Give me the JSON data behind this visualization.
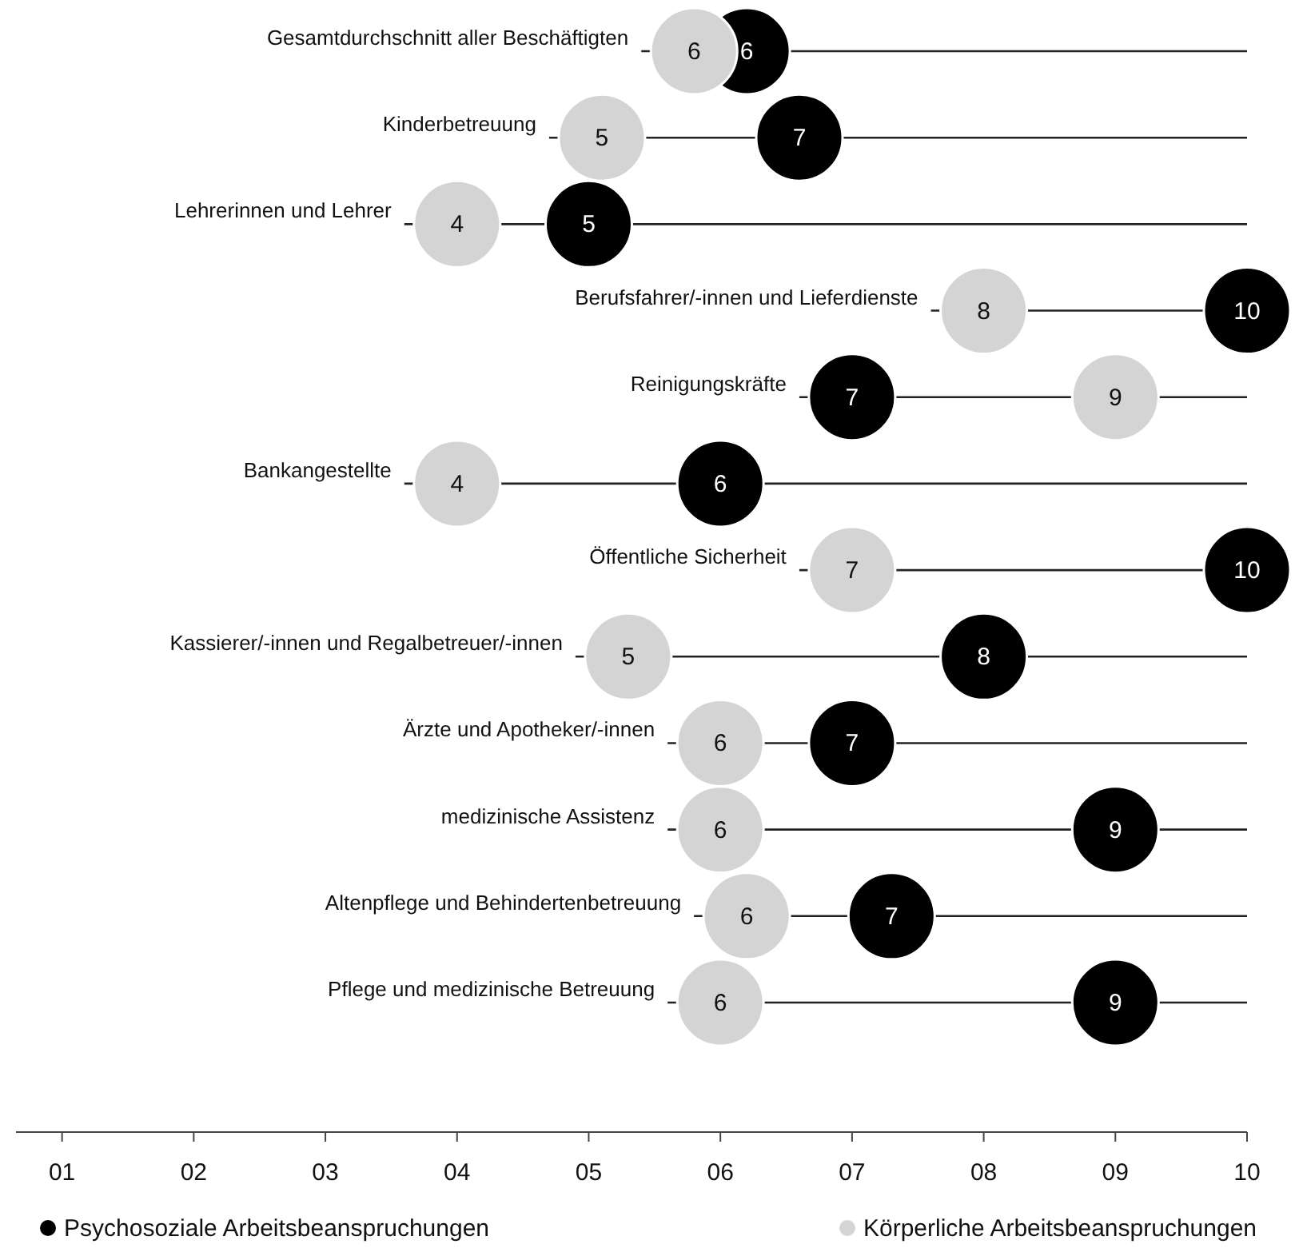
{
  "chart_data": {
    "type": "scatter",
    "orientation": "horizontal",
    "marker": "circle",
    "legend": "bottom",
    "categories": [
      "Gesamtdurchschnitt  aller Beschäftigten",
      "Kinderbetreuung",
      "Lehrerinnen und Lehrer",
      "Berufsfahrer/-innen und Lieferdienste",
      "Reinigungskräfte",
      "Bankangestellte",
      "Öffentliche Sicherheit",
      "Kassierer/-innen und Regalbetreuer/-innen",
      "Ärzte und Apotheker/-innen",
      "medizinische Assistenz",
      "Altenpflege  und Behindertenbetreuung",
      "Pflege und medizinische Betreuung"
    ],
    "xlim": [
      0.65,
      10
    ],
    "xticks": [
      {
        "value": 1,
        "label": "01"
      },
      {
        "value": 2,
        "label": "02"
      },
      {
        "value": 3,
        "label": "03"
      },
      {
        "value": 4,
        "label": "04"
      },
      {
        "value": 5,
        "label": "05"
      },
      {
        "value": 6,
        "label": "06"
      },
      {
        "value": 7,
        "label": "07"
      },
      {
        "value": 8,
        "label": "08"
      },
      {
        "value": 9,
        "label": "09"
      },
      {
        "value": 10,
        "label": "10"
      }
    ],
    "ref_lines": [
      {
        "axis": "y",
        "value": "Gesamtdurchschnitt  aller Beschäftigten",
        "color": "#222222"
      },
      {
        "axis": "y",
        "value": "Kinderbetreuung",
        "color": "#222222"
      },
      {
        "axis": "y",
        "value": "Lehrerinnen und Lehrer",
        "color": "#222222"
      },
      {
        "axis": "y",
        "value": "Berufsfahrer/-innen und Lieferdienste",
        "color": "#222222"
      },
      {
        "axis": "y",
        "value": "Reinigungskräfte",
        "color": "#222222"
      },
      {
        "axis": "y",
        "value": "Bankangestellte",
        "color": "#222222"
      },
      {
        "axis": "y",
        "value": "Öffentliche Sicherheit",
        "color": "#222222"
      },
      {
        "axis": "y",
        "value": "Kassierer/-innen und Regalbetreuer/-innen",
        "color": "#222222"
      },
      {
        "axis": "y",
        "value": "Ärzte und Apotheker/-innen",
        "color": "#222222"
      },
      {
        "axis": "y",
        "value": "medizinische Assistenz",
        "color": "#222222"
      },
      {
        "axis": "y",
        "value": "Altenpflege  und Behindertenbetreuung",
        "color": "#222222"
      },
      {
        "axis": "y",
        "value": "Pflege und medizinische Betreuung",
        "color": "#222222"
      }
    ],
    "series": [
      {
        "name": "Psychosoziale Arbeitsbeanspruchungen",
        "color": "#000000",
        "values": [
          6.2,
          6.6,
          5,
          10,
          7,
          6,
          10,
          8,
          7,
          9,
          7.3,
          9
        ],
        "value_labels": [
          "6",
          "7",
          "5",
          "10",
          "7",
          "6",
          "10",
          "8",
          "7",
          "9",
          "7",
          "9"
        ]
      },
      {
        "name": "Körperliche Arbeitsbeanspruchungen",
        "color": "#d4d4d4",
        "values": [
          5.8,
          5.1,
          4,
          8,
          9,
          4,
          7,
          5.3,
          6,
          6,
          6.2,
          6
        ],
        "value_labels": [
          "6",
          "5",
          "4",
          "8",
          "9",
          "4",
          "7",
          "5",
          "6",
          "6",
          "6",
          "6"
        ]
      }
    ]
  }
}
